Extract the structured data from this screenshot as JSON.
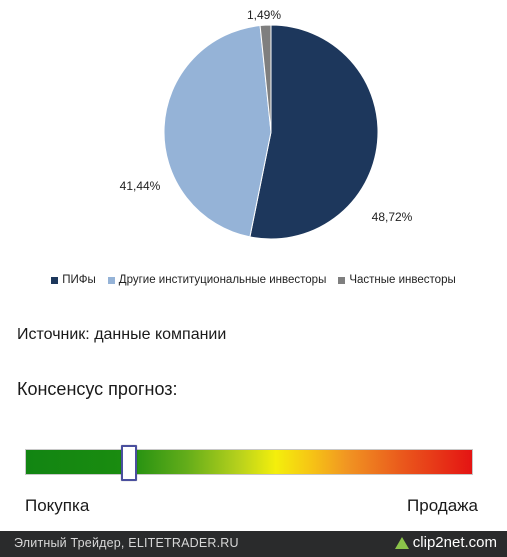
{
  "chart_data": {
    "type": "pie",
    "slices": [
      {
        "label": "ПИФы",
        "value": 48.72,
        "display": "48,72%",
        "color": "#1d375c"
      },
      {
        "label": "Другие институциональные инвесторы",
        "value": 41.44,
        "display": "41,44%",
        "color": "#95b3d7"
      },
      {
        "label": "Частные инвесторы",
        "value": 1.49,
        "display": "1,49%",
        "color": "#7f7f7f"
      }
    ],
    "legend_position": "bottom"
  },
  "source_text": "Источник: данные компании",
  "consensus": {
    "title": "Консенсус прогноз:",
    "left_label": "Покупка",
    "right_label": "Продажа",
    "level": 0.23
  },
  "footer": {
    "text": "Элитный Трейдер, ELITETRADER.RU",
    "brand": "clip2net.com",
    "brand_icon": "triangle-icon"
  }
}
